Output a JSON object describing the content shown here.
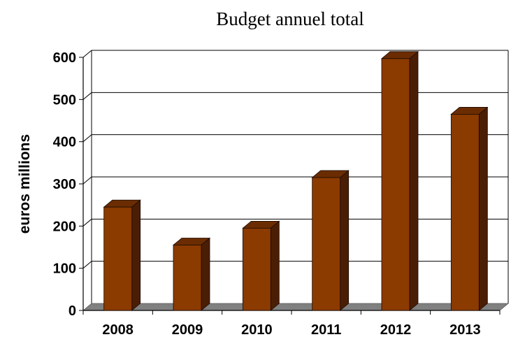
{
  "chart_data": {
    "type": "bar",
    "title": "Budget annuel total",
    "xlabel": "",
    "ylabel": "euros millions",
    "categories": [
      "2008",
      "2009",
      "2010",
      "2011",
      "2012",
      "2013"
    ],
    "values": [
      245,
      155,
      195,
      315,
      597,
      465
    ],
    "ylim": [
      0,
      600
    ],
    "yticks": [
      "0",
      "100",
      "200",
      "300",
      "400",
      "500",
      "600"
    ],
    "grid": true,
    "legend": "none",
    "colors": {
      "bar_front": "#8b3a00",
      "bar_side": "#4a1e05",
      "bar_top": "#6b2c02",
      "floor": "#808080",
      "grid": "#000000"
    }
  }
}
